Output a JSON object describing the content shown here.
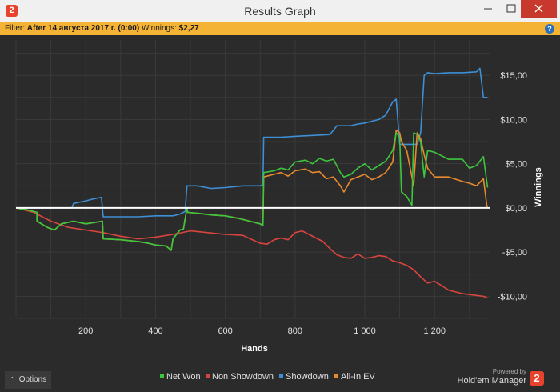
{
  "window": {
    "title": "Results Graph",
    "badge": "2"
  },
  "filter": {
    "label": "Filter:",
    "value": "After 14 августа 2017 г. (0:00)",
    "winnings_label": "Winnings:",
    "winnings_value": "$2,27",
    "help": "?"
  },
  "colors": {
    "net_won": "#3ec63e",
    "non_showdown": "#d9453d",
    "showdown": "#3d8fd6",
    "all_in_ev": "#e88a2e",
    "zero_line": "#ffffff",
    "background": "#2b2b2b"
  },
  "chart_data": {
    "type": "line",
    "xlabel": "Hands",
    "ylabel": "Winnings",
    "xlim": [
      0,
      1360
    ],
    "ylim": [
      -12.5,
      19
    ],
    "xticks": [
      200,
      400,
      600,
      800,
      1000,
      1200
    ],
    "xtick_labels": [
      "200",
      "400",
      "600",
      "800",
      "1 000",
      "1 200"
    ],
    "yticks": [
      15,
      10,
      5,
      0,
      -5,
      -10
    ],
    "ytick_labels": [
      "$15,00",
      "$10,00",
      "$5,00",
      "$0,00",
      "-$5,00",
      "-$10,00"
    ],
    "grid": true,
    "legend_position": "bottom",
    "series": [
      {
        "name": "Net Won",
        "color_key": "net_won",
        "x": [
          0,
          30,
          60,
          60,
          90,
          110,
          130,
          165,
          200,
          248,
          250,
          300,
          350,
          380,
          400,
          430,
          445,
          450,
          460,
          470,
          480,
          490,
          492,
          520,
          560,
          600,
          640,
          670,
          700,
          708,
          710,
          740,
          760,
          780,
          800,
          830,
          850,
          870,
          890,
          910,
          930,
          940,
          960,
          980,
          1000,
          1020,
          1040,
          1060,
          1080,
          1090,
          1100,
          1105,
          1120,
          1135,
          1140,
          1150,
          1160,
          1170,
          1180,
          1200,
          1240,
          1280,
          1300,
          1320,
          1340,
          1352
        ],
        "y": [
          0,
          -0.2,
          -0.5,
          -1.5,
          -2.2,
          -2.5,
          -1.8,
          -1.5,
          -1.8,
          -1.5,
          -3.5,
          -3.6,
          -3.8,
          -4.0,
          -4.2,
          -4.3,
          -4.8,
          -3.5,
          -3.0,
          -2.5,
          -2.4,
          0,
          -0.5,
          -0.6,
          -0.8,
          -0.9,
          -1.2,
          -1.5,
          -1.8,
          -2.0,
          4.0,
          4.2,
          4.5,
          4.3,
          5.2,
          5.4,
          5.0,
          5.6,
          5.3,
          5.5,
          4.0,
          3.5,
          3.8,
          4.5,
          5.0,
          4.3,
          4.8,
          5.3,
          6.5,
          8.5,
          8.0,
          1.8,
          1.3,
          0.3,
          8.5,
          8.3,
          7.5,
          3.5,
          6.5,
          6.3,
          5.5,
          5.5,
          4.5,
          4.8,
          5.8,
          2.3
        ]
      },
      {
        "name": "Non Showdown",
        "color_key": "non_showdown",
        "x": [
          0,
          50,
          100,
          150,
          200,
          250,
          300,
          350,
          400,
          450,
          500,
          550,
          600,
          650,
          700,
          720,
          740,
          760,
          780,
          800,
          820,
          840,
          860,
          880,
          900,
          920,
          940,
          960,
          980,
          1000,
          1020,
          1040,
          1060,
          1080,
          1100,
          1120,
          1140,
          1160,
          1180,
          1200,
          1220,
          1240,
          1260,
          1280,
          1300,
          1320,
          1340,
          1352
        ],
        "y": [
          0,
          -0.5,
          -1.5,
          -2.2,
          -2.5,
          -2.8,
          -3.2,
          -3.5,
          -3.3,
          -3.0,
          -2.6,
          -2.8,
          -3.0,
          -3.1,
          -4.0,
          -4.1,
          -3.6,
          -3.4,
          -3.6,
          -2.8,
          -2.6,
          -3.0,
          -3.4,
          -3.8,
          -4.6,
          -5.3,
          -5.6,
          -5.7,
          -5.2,
          -5.7,
          -5.6,
          -5.4,
          -5.5,
          -6.0,
          -6.2,
          -6.5,
          -7.0,
          -7.8,
          -8.5,
          -8.3,
          -8.8,
          -9.3,
          -9.5,
          -9.7,
          -9.8,
          -9.9,
          -10.0,
          -10.2
        ]
      },
      {
        "name": "Showdown",
        "color_key": "showdown",
        "x": [
          0,
          160,
          165,
          200,
          220,
          245,
          250,
          300,
          350,
          400,
          450,
          470,
          480,
          485,
          490,
          520,
          560,
          600,
          650,
          700,
          708,
          710,
          760,
          800,
          850,
          900,
          920,
          960,
          980,
          1000,
          1040,
          1060,
          1080,
          1090,
          1100,
          1105,
          1150,
          1160,
          1170,
          1180,
          1200,
          1240,
          1280,
          1320,
          1330,
          1340,
          1352
        ],
        "y": [
          0,
          0,
          0.5,
          0.8,
          1.0,
          1.2,
          -1.0,
          -1.0,
          -1.0,
          -0.9,
          -0.9,
          -0.7,
          -0.5,
          -0.4,
          2.5,
          2.5,
          2.2,
          2.3,
          2.5,
          2.5,
          2.6,
          8.0,
          8.0,
          8.1,
          8.2,
          8.3,
          9.3,
          9.3,
          9.5,
          9.6,
          10.0,
          10.5,
          12.0,
          12.3,
          7.2,
          7.2,
          7.2,
          8.5,
          15.0,
          15.3,
          15.2,
          15.3,
          15.3,
          15.4,
          15.8,
          12.5,
          12.5
        ]
      },
      {
        "name": "All-In EV",
        "color_key": "all_in_ev",
        "x": [
          0,
          30,
          60,
          60,
          90,
          110,
          130,
          165,
          200,
          248,
          250,
          300,
          350,
          380,
          400,
          430,
          445,
          450,
          460,
          470,
          480,
          490,
          492,
          520,
          560,
          600,
          640,
          670,
          700,
          708,
          710,
          740,
          760,
          780,
          800,
          830,
          850,
          870,
          890,
          910,
          930,
          940,
          960,
          980,
          1000,
          1020,
          1040,
          1060,
          1080,
          1090,
          1100,
          1105,
          1120,
          1140,
          1150,
          1160,
          1170,
          1180,
          1200,
          1240,
          1280,
          1300,
          1320,
          1340,
          1350,
          1352
        ],
        "y": [
          0,
          -0.2,
          -0.5,
          -1.5,
          -2.2,
          -2.5,
          -1.8,
          -1.5,
          -1.8,
          -1.5,
          -3.5,
          -3.6,
          -3.8,
          -4.0,
          -4.2,
          -4.3,
          -4.8,
          -3.5,
          -3.0,
          -2.5,
          -2.4,
          0,
          -0.5,
          -0.6,
          -0.8,
          -0.9,
          -1.2,
          -1.5,
          -1.8,
          -2.0,
          3.5,
          3.8,
          4.0,
          3.6,
          4.2,
          4.4,
          4.0,
          4.1,
          3.3,
          3.5,
          2.5,
          1.8,
          3.2,
          3.5,
          3.8,
          3.2,
          3.5,
          4.0,
          5.2,
          8.8,
          8.5,
          7.5,
          6.5,
          2.5,
          8.5,
          7.8,
          6.0,
          4.5,
          3.5,
          3.5,
          3.0,
          2.8,
          2.5,
          3.3,
          0.2,
          0.1
        ]
      }
    ]
  },
  "footer": {
    "options_label": "Options",
    "options_caret": "⌃",
    "powered_by": "Powered by",
    "brand": "Hold'em Manager",
    "brand_badge": "2"
  }
}
